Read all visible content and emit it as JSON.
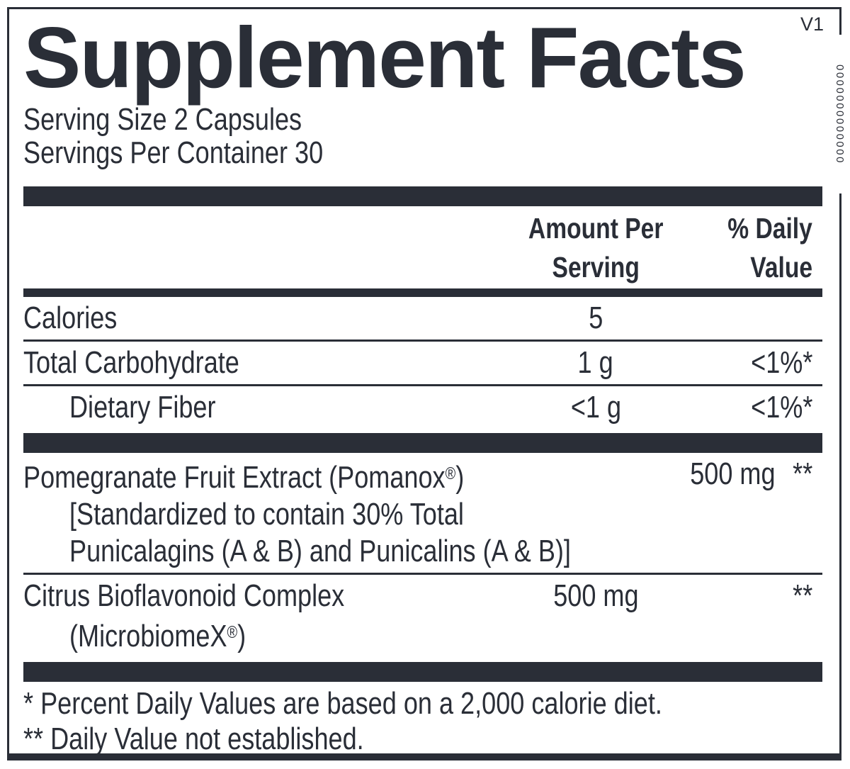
{
  "version_tag": "V1",
  "edge_code": "0000000000000",
  "colors": {
    "ink": "#2a2e37",
    "background": "#ffffff"
  },
  "title": "Supplement Facts",
  "serving_info": {
    "serving_size": "Serving Size 2 Capsules",
    "servings_per_container": "Servings Per Container 30"
  },
  "table": {
    "header": {
      "amount_lines": [
        "Amount Per",
        "Serving"
      ],
      "dv_lines": [
        "% Daily",
        "Value"
      ]
    },
    "nutrient_rows": [
      {
        "name": "Calories",
        "amount": "5",
        "dv": "",
        "indent": false,
        "details": []
      },
      {
        "name": "Total Carbohydrate",
        "amount": "1 g",
        "dv": "<1%*",
        "indent": false,
        "details": []
      },
      {
        "name": "Dietary Fiber",
        "amount": "<1 g",
        "dv": "<1%*",
        "indent": true,
        "details": []
      }
    ],
    "ingredient_rows": [
      {
        "name": "Pomegranate Fruit Extract (Pomanox®)",
        "amount": "500 mg",
        "dv": "**",
        "indent": false,
        "details": [
          "[Standardized to contain 30% Total",
          "Punicalagins (A & B) and Punicalins (A & B)]"
        ]
      },
      {
        "name": "Citrus Bioflavonoid Complex",
        "amount": "500 mg",
        "dv": "**",
        "indent": false,
        "details": [
          "(MicrobiomeX®)"
        ]
      }
    ]
  },
  "footnotes": [
    "* Percent Daily Values are based on a 2,000 calorie diet.",
    "** Daily Value not established."
  ]
}
